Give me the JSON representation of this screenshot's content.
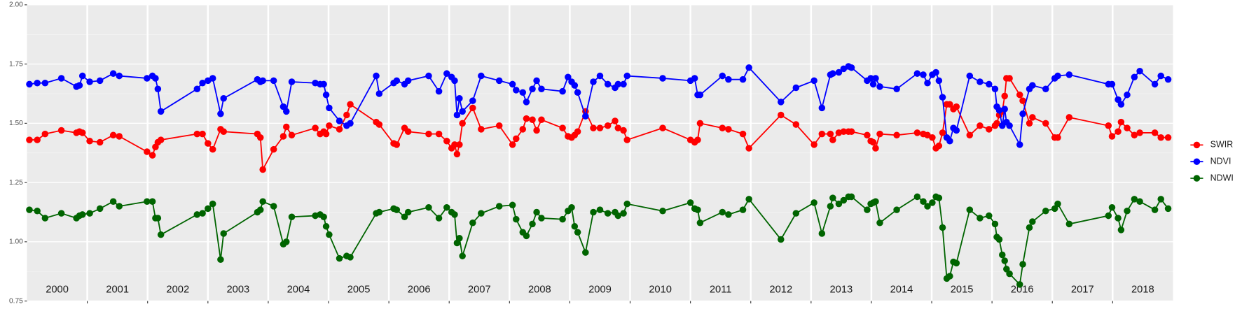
{
  "chart_data": {
    "type": "line",
    "x": [
      2000.04,
      2000.17,
      2000.3,
      2000.57,
      2000.82,
      2000.87,
      2000.92,
      2001.04,
      2001.21,
      2001.43,
      2001.53,
      2001.99,
      2002.08,
      2002.13,
      2002.17,
      2002.22,
      2002.82,
      2002.91,
      2003.0,
      2003.08,
      2003.21,
      2003.26,
      2003.82,
      2003.87,
      2003.91,
      2004.09,
      2004.25,
      2004.3,
      2004.39,
      2004.78,
      2004.86,
      2004.92,
      2004.96,
      2005.01,
      2005.18,
      2005.3,
      2005.36,
      2005.79,
      2005.84,
      2006.08,
      2006.13,
      2006.26,
      2006.32,
      2006.66,
      2006.83,
      2006.96,
      2007.04,
      2007.09,
      2007.13,
      2007.17,
      2007.22,
      2007.39,
      2007.53,
      2007.83,
      2008.05,
      2008.11,
      2008.22,
      2008.28,
      2008.38,
      2008.45,
      2008.53,
      2008.88,
      2008.97,
      2009.03,
      2009.08,
      2009.13,
      2009.26,
      2009.39,
      2009.5,
      2009.63,
      2009.75,
      2009.8,
      2009.89,
      2009.95,
      2010.54,
      2011.0,
      2011.07,
      2011.12,
      2011.16,
      2011.53,
      2011.63,
      2011.87,
      2011.97,
      2012.5,
      2012.75,
      2013.05,
      2013.18,
      2013.32,
      2013.36,
      2013.46,
      2013.54,
      2013.62,
      2013.67,
      2013.93,
      2013.99,
      2014.03,
      2014.07,
      2014.14,
      2014.42,
      2014.76,
      2014.86,
      2014.93,
      2015.01,
      2015.07,
      2015.12,
      2015.18,
      2015.25,
      2015.3,
      2015.36,
      2015.41,
      2015.63,
      2015.8,
      2015.95,
      2016.05,
      2016.08,
      2016.12,
      2016.17,
      2016.21,
      2016.24,
      2016.29,
      2016.46,
      2016.51,
      2016.62,
      2016.67,
      2016.89,
      2017.04,
      2017.09,
      2017.28,
      2017.93,
      2017.99,
      2018.09,
      2018.14,
      2018.24,
      2018.36,
      2018.45,
      2018.7,
      2018.8,
      2018.92
    ],
    "series": [
      {
        "name": "SWIR",
        "color": "#ff0000",
        "values": [
          1.43,
          1.43,
          1.455,
          1.47,
          1.46,
          1.465,
          1.46,
          1.425,
          1.42,
          1.45,
          1.445,
          1.38,
          1.365,
          1.4,
          1.42,
          1.43,
          1.455,
          1.455,
          1.415,
          1.39,
          1.475,
          1.465,
          1.455,
          1.44,
          1.305,
          1.39,
          1.445,
          1.485,
          1.45,
          1.48,
          1.455,
          1.465,
          1.455,
          1.49,
          1.475,
          1.535,
          1.58,
          1.505,
          1.495,
          1.415,
          1.41,
          1.48,
          1.465,
          1.455,
          1.455,
          1.425,
          1.395,
          1.41,
          1.37,
          1.41,
          1.5,
          1.565,
          1.475,
          1.49,
          1.41,
          1.435,
          1.475,
          1.52,
          1.515,
          1.47,
          1.515,
          1.48,
          1.445,
          1.44,
          1.45,
          1.465,
          1.55,
          1.48,
          1.48,
          1.49,
          1.51,
          1.48,
          1.47,
          1.43,
          1.48,
          1.43,
          1.42,
          1.43,
          1.5,
          1.48,
          1.475,
          1.455,
          1.395,
          1.535,
          1.495,
          1.41,
          1.455,
          1.455,
          1.43,
          1.46,
          1.465,
          1.465,
          1.465,
          1.45,
          1.425,
          1.42,
          1.395,
          1.455,
          1.45,
          1.46,
          1.455,
          1.45,
          1.44,
          1.395,
          1.405,
          1.46,
          1.58,
          1.58,
          1.56,
          1.57,
          1.45,
          1.49,
          1.475,
          1.49,
          1.5,
          1.535,
          1.55,
          1.615,
          1.69,
          1.69,
          1.62,
          1.595,
          1.5,
          1.525,
          1.5,
          1.44,
          1.44,
          1.525,
          1.49,
          1.445,
          1.465,
          1.505,
          1.48,
          1.45,
          1.46,
          1.46,
          1.44,
          1.44
        ]
      },
      {
        "name": "NDVI",
        "color": "#0000ff",
        "values": [
          1.665,
          1.67,
          1.67,
          1.69,
          1.655,
          1.66,
          1.7,
          1.675,
          1.68,
          1.71,
          1.7,
          1.69,
          1.7,
          1.69,
          1.645,
          1.55,
          1.645,
          1.67,
          1.68,
          1.69,
          1.54,
          1.605,
          1.685,
          1.675,
          1.68,
          1.68,
          1.57,
          1.55,
          1.675,
          1.67,
          1.665,
          1.665,
          1.62,
          1.565,
          1.51,
          1.49,
          1.5,
          1.7,
          1.625,
          1.67,
          1.68,
          1.665,
          1.68,
          1.7,
          1.635,
          1.71,
          1.695,
          1.68,
          1.535,
          1.605,
          1.55,
          1.595,
          1.7,
          1.68,
          1.665,
          1.64,
          1.63,
          1.59,
          1.645,
          1.68,
          1.645,
          1.635,
          1.695,
          1.675,
          1.66,
          1.63,
          1.53,
          1.675,
          1.7,
          1.665,
          1.65,
          1.665,
          1.665,
          1.7,
          1.69,
          1.68,
          1.69,
          1.62,
          1.62,
          1.7,
          1.685,
          1.685,
          1.735,
          1.59,
          1.65,
          1.68,
          1.565,
          1.705,
          1.71,
          1.715,
          1.73,
          1.74,
          1.735,
          1.68,
          1.69,
          1.665,
          1.69,
          1.655,
          1.645,
          1.71,
          1.705,
          1.67,
          1.705,
          1.715,
          1.68,
          1.61,
          1.44,
          1.425,
          1.48,
          1.47,
          1.7,
          1.675,
          1.665,
          1.645,
          1.57,
          1.555,
          1.49,
          1.56,
          1.505,
          1.49,
          1.41,
          1.54,
          1.645,
          1.66,
          1.645,
          1.69,
          1.7,
          1.705,
          1.665,
          1.665,
          1.6,
          1.58,
          1.62,
          1.695,
          1.72,
          1.665,
          1.7,
          1.685
        ]
      },
      {
        "name": "NDWI",
        "color": "#006400",
        "values": [
          1.135,
          1.13,
          1.1,
          1.12,
          1.1,
          1.11,
          1.115,
          1.12,
          1.14,
          1.17,
          1.15,
          1.17,
          1.17,
          1.1,
          1.1,
          1.03,
          1.115,
          1.12,
          1.14,
          1.16,
          0.925,
          1.035,
          1.125,
          1.135,
          1.17,
          1.15,
          0.99,
          1.0,
          1.105,
          1.11,
          1.115,
          1.105,
          1.065,
          1.03,
          0.93,
          0.94,
          0.935,
          1.12,
          1.125,
          1.14,
          1.135,
          1.105,
          1.125,
          1.145,
          1.1,
          1.145,
          1.125,
          1.115,
          0.995,
          1.015,
          0.94,
          1.08,
          1.12,
          1.15,
          1.155,
          1.095,
          1.04,
          1.025,
          1.075,
          1.125,
          1.1,
          1.095,
          1.13,
          1.145,
          1.065,
          1.04,
          0.955,
          1.125,
          1.135,
          1.12,
          1.125,
          1.11,
          1.12,
          1.16,
          1.13,
          1.165,
          1.14,
          1.135,
          1.08,
          1.125,
          1.115,
          1.135,
          1.18,
          1.01,
          1.12,
          1.165,
          1.035,
          1.15,
          1.185,
          1.16,
          1.175,
          1.19,
          1.19,
          1.135,
          1.16,
          1.165,
          1.17,
          1.08,
          1.135,
          1.19,
          1.17,
          1.15,
          1.165,
          1.19,
          1.185,
          1.06,
          0.845,
          0.855,
          0.915,
          0.91,
          1.135,
          1.1,
          1.11,
          1.075,
          1.02,
          1.01,
          0.945,
          0.92,
          0.885,
          0.865,
          0.82,
          0.905,
          1.06,
          1.085,
          1.13,
          1.14,
          1.16,
          1.075,
          1.11,
          1.145,
          1.1,
          1.05,
          1.13,
          1.18,
          1.17,
          1.135,
          1.18,
          1.14
        ]
      }
    ],
    "xlim": [
      2000,
      2019
    ],
    "xgrid": [
      2001,
      2002,
      2003,
      2004,
      2005,
      2006,
      2007,
      2008,
      2009,
      2010,
      2011,
      2012,
      2013,
      2014,
      2015,
      2016,
      2017,
      2018
    ],
    "xticks": [
      {
        "value": 2000.5,
        "label": "2000"
      },
      {
        "value": 2001.5,
        "label": "2001"
      },
      {
        "value": 2002.5,
        "label": "2002"
      },
      {
        "value": 2003.5,
        "label": "2003"
      },
      {
        "value": 2004.5,
        "label": "2004"
      },
      {
        "value": 2005.5,
        "label": "2005"
      },
      {
        "value": 2006.5,
        "label": "2006"
      },
      {
        "value": 2007.5,
        "label": "2007"
      },
      {
        "value": 2008.5,
        "label": "2008"
      },
      {
        "value": 2009.5,
        "label": "2009"
      },
      {
        "value": 2010.5,
        "label": "2010"
      },
      {
        "value": 2011.5,
        "label": "2011"
      },
      {
        "value": 2012.5,
        "label": "2012"
      },
      {
        "value": 2013.5,
        "label": "2013"
      },
      {
        "value": 2014.5,
        "label": "2014"
      },
      {
        "value": 2015.5,
        "label": "2015"
      },
      {
        "value": 2016.5,
        "label": "2016"
      },
      {
        "value": 2017.5,
        "label": "2017"
      },
      {
        "value": 2018.5,
        "label": "2018"
      }
    ],
    "ylim": [
      0.75,
      2.0
    ],
    "yticks": [
      {
        "value": 0.75,
        "label": "0.75"
      },
      {
        "value": 1.0,
        "label": "1.00"
      },
      {
        "value": 1.25,
        "label": "1.25"
      },
      {
        "value": 1.5,
        "label": "1.50"
      },
      {
        "value": 1.75,
        "label": "1.75"
      },
      {
        "value": 2.0,
        "label": "2.00"
      }
    ],
    "yminor_ticks": [
      0.875,
      1.125,
      1.375,
      1.625,
      1.875
    ],
    "grid": true,
    "legend": "right"
  }
}
